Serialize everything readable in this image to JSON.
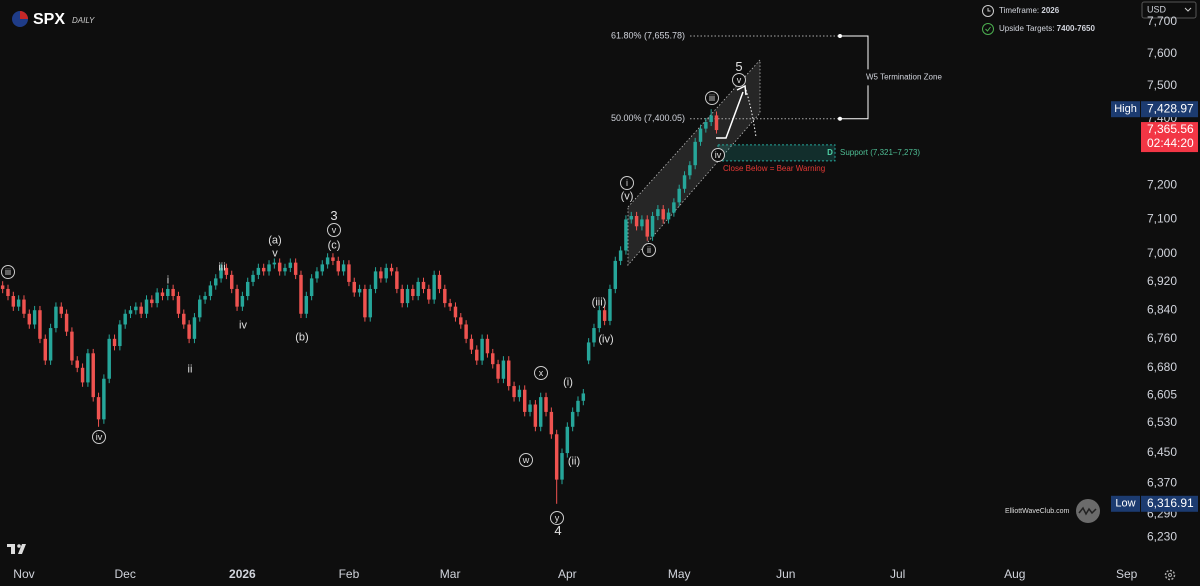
{
  "header": {
    "symbol": "SPX",
    "interval": "DAILY",
    "currency": "USD"
  },
  "info": {
    "timeframe_label": "Timeframe:",
    "timeframe": "2026",
    "targets_label": "Upside Targets:",
    "targets": "7400-7650"
  },
  "watermark": "ElliottWaveClub.com",
  "chart_data": {
    "type": "candlestick",
    "log_scale": true,
    "up_color": "#26a69a",
    "down_color": "#ef5350",
    "ylim": [
      6160,
      7770
    ],
    "yticks": [
      {
        "value": 7700,
        "label": "7,700"
      },
      {
        "value": 7600,
        "label": "7,600"
      },
      {
        "value": 7500,
        "label": "7,500"
      },
      {
        "value": 7400,
        "label": "7,400"
      },
      {
        "value": 7200,
        "label": "7,200"
      },
      {
        "value": 7100,
        "label": "7,100"
      },
      {
        "value": 7000,
        "label": "7,000"
      },
      {
        "value": 6920,
        "label": "6,920"
      },
      {
        "value": 6840,
        "label": "6,840"
      },
      {
        "value": 6760,
        "label": "6,760"
      },
      {
        "value": 6680,
        "label": "6,680"
      },
      {
        "value": 6605,
        "label": "6,605"
      },
      {
        "value": 6530,
        "label": "6,530"
      },
      {
        "value": 6450,
        "label": "6,450"
      },
      {
        "value": 6370,
        "label": "6,370"
      },
      {
        "value": 6290,
        "label": "6,290"
      },
      {
        "value": 6230,
        "label": "6,230"
      }
    ],
    "xlim": [
      -0.5,
      213.5
    ],
    "xticks": [
      {
        "value": 4,
        "label": "Nov"
      },
      {
        "value": 23,
        "label": "Dec"
      },
      {
        "value": 45,
        "label": "2026"
      },
      {
        "value": 65,
        "label": "Feb"
      },
      {
        "value": 84,
        "label": "Mar"
      },
      {
        "value": 106,
        "label": "Apr"
      },
      {
        "value": 127,
        "label": "May"
      },
      {
        "value": 147,
        "label": "Jun"
      },
      {
        "value": 168,
        "label": "Jul"
      },
      {
        "value": 190,
        "label": "Aug"
      },
      {
        "value": 211,
        "label": "Sep"
      }
    ],
    "ohlc": [
      [
        6910,
        6922,
        6888,
        6900
      ],
      [
        6900,
        6912,
        6868,
        6880
      ],
      [
        6880,
        6892,
        6838,
        6850
      ],
      [
        6850,
        6882,
        6838,
        6870
      ],
      [
        6870,
        6882,
        6818,
        6830
      ],
      [
        6830,
        6842,
        6788,
        6800
      ],
      [
        6800,
        6852,
        6788,
        6840
      ],
      [
        6840,
        6852,
        6748,
        6760
      ],
      [
        6760,
        6772,
        6688,
        6700
      ],
      [
        6700,
        6802,
        6688,
        6790
      ],
      [
        6790,
        6862,
        6778,
        6850
      ],
      [
        6850,
        6862,
        6818,
        6830
      ],
      [
        6830,
        6842,
        6768,
        6780
      ],
      [
        6780,
        6792,
        6688,
        6700
      ],
      [
        6700,
        6712,
        6668,
        6680
      ],
      [
        6680,
        6692,
        6628,
        6640
      ],
      [
        6640,
        6732,
        6628,
        6720
      ],
      [
        6720,
        6732,
        6588,
        6600
      ],
      [
        6600,
        6612,
        6520,
        6540
      ],
      [
        6540,
        6662,
        6528,
        6650
      ],
      [
        6650,
        6772,
        6638,
        6760
      ],
      [
        6760,
        6772,
        6728,
        6740
      ],
      [
        6740,
        6812,
        6728,
        6800
      ],
      [
        6800,
        6842,
        6788,
        6830
      ],
      [
        6830,
        6852,
        6818,
        6840
      ],
      [
        6840,
        6862,
        6828,
        6850
      ],
      [
        6850,
        6862,
        6818,
        6830
      ],
      [
        6830,
        6882,
        6818,
        6870
      ],
      [
        6870,
        6882,
        6848,
        6860
      ],
      [
        6860,
        6902,
        6848,
        6890
      ],
      [
        6890,
        6902,
        6868,
        6880
      ],
      [
        6880,
        6912,
        6868,
        6900
      ],
      [
        6900,
        6912,
        6868,
        6880
      ],
      [
        6880,
        6892,
        6818,
        6830
      ],
      [
        6830,
        6842,
        6788,
        6800
      ],
      [
        6800,
        6812,
        6748,
        6760
      ],
      [
        6760,
        6832,
        6748,
        6820
      ],
      [
        6820,
        6882,
        6808,
        6870
      ],
      [
        6870,
        6892,
        6858,
        6880
      ],
      [
        6880,
        6922,
        6868,
        6910
      ],
      [
        6910,
        6942,
        6898,
        6930
      ],
      [
        6930,
        6972,
        6918,
        6960
      ],
      [
        6960,
        6972,
        6928,
        6940
      ],
      [
        6940,
        6952,
        6888,
        6900
      ],
      [
        6900,
        6912,
        6838,
        6850
      ],
      [
        6850,
        6892,
        6838,
        6880
      ],
      [
        6880,
        6932,
        6868,
        6920
      ],
      [
        6920,
        6952,
        6908,
        6940
      ],
      [
        6940,
        6972,
        6928,
        6960
      ],
      [
        6960,
        6972,
        6938,
        6950
      ],
      [
        6950,
        6982,
        6938,
        6970
      ],
      [
        6970,
        6987,
        6958,
        6975
      ],
      [
        6975,
        6987,
        6938,
        6950
      ],
      [
        6950,
        6972,
        6938,
        6960
      ],
      [
        6960,
        6987,
        6948,
        6975
      ],
      [
        6975,
        6987,
        6928,
        6940
      ],
      [
        6940,
        6952,
        6818,
        6830
      ],
      [
        6830,
        6892,
        6818,
        6880
      ],
      [
        6880,
        6942,
        6868,
        6930
      ],
      [
        6930,
        6962,
        6918,
        6950
      ],
      [
        6950,
        6982,
        6938,
        6970
      ],
      [
        6970,
        7002,
        6958,
        6990
      ],
      [
        6990,
        7002,
        6968,
        6980
      ],
      [
        6980,
        6992,
        6938,
        6950
      ],
      [
        6950,
        6982,
        6938,
        6970
      ],
      [
        6970,
        6982,
        6908,
        6920
      ],
      [
        6920,
        6932,
        6878,
        6890
      ],
      [
        6890,
        6912,
        6878,
        6900
      ],
      [
        6900,
        6912,
        6808,
        6820
      ],
      [
        6820,
        6912,
        6808,
        6900
      ],
      [
        6900,
        6962,
        6888,
        6950
      ],
      [
        6950,
        6962,
        6918,
        6930
      ],
      [
        6930,
        6972,
        6918,
        6960
      ],
      [
        6960,
        6972,
        6938,
        6950
      ],
      [
        6950,
        6962,
        6888,
        6900
      ],
      [
        6900,
        6912,
        6848,
        6860
      ],
      [
        6860,
        6912,
        6848,
        6900
      ],
      [
        6900,
        6912,
        6868,
        6880
      ],
      [
        6880,
        6932,
        6868,
        6920
      ],
      [
        6920,
        6932,
        6888,
        6900
      ],
      [
        6900,
        6912,
        6858,
        6870
      ],
      [
        6870,
        6952,
        6858,
        6940
      ],
      [
        6940,
        6952,
        6888,
        6900
      ],
      [
        6900,
        6912,
        6848,
        6860
      ],
      [
        6860,
        6872,
        6838,
        6850
      ],
      [
        6850,
        6862,
        6808,
        6820
      ],
      [
        6820,
        6832,
        6788,
        6800
      ],
      [
        6800,
        6812,
        6748,
        6760
      ],
      [
        6760,
        6772,
        6718,
        6730
      ],
      [
        6730,
        6742,
        6688,
        6700
      ],
      [
        6700,
        6772,
        6688,
        6760
      ],
      [
        6760,
        6772,
        6708,
        6720
      ],
      [
        6720,
        6732,
        6678,
        6690
      ],
      [
        6690,
        6702,
        6638,
        6650
      ],
      [
        6650,
        6712,
        6638,
        6700
      ],
      [
        6700,
        6712,
        6618,
        6630
      ],
      [
        6630,
        6642,
        6588,
        6600
      ],
      [
        6600,
        6632,
        6588,
        6620
      ],
      [
        6620,
        6632,
        6548,
        6560
      ],
      [
        6560,
        6592,
        6548,
        6580
      ],
      [
        6580,
        6592,
        6508,
        6520
      ],
      [
        6520,
        6612,
        6508,
        6600
      ],
      [
        6600,
        6612,
        6548,
        6560
      ],
      [
        6560,
        6572,
        6488,
        6500
      ],
      [
        6500,
        6512,
        6316.91,
        6380
      ],
      [
        6380,
        6462,
        6368,
        6450
      ],
      [
        6450,
        6532,
        6438,
        6520
      ],
      [
        6520,
        6572,
        6508,
        6560
      ],
      [
        6560,
        6602,
        6548,
        6590
      ],
      [
        6590,
        6622,
        6578,
        6610
      ],
      [
        6700,
        6762,
        6690,
        6750
      ],
      [
        6750,
        6802,
        6738,
        6790
      ],
      [
        6790,
        6852,
        6778,
        6840
      ],
      [
        6840,
        6852,
        6798,
        6810
      ],
      [
        6810,
        6912,
        6798,
        6900
      ],
      [
        6900,
        6992,
        6888,
        6980
      ],
      [
        6980,
        7022,
        6968,
        7010
      ],
      [
        7010,
        7112,
        6998,
        7100
      ],
      [
        7100,
        7122,
        7088,
        7110
      ],
      [
        7110,
        7122,
        7068,
        7080
      ],
      [
        7080,
        7112,
        7068,
        7100
      ],
      [
        7100,
        7112,
        7038,
        7050
      ],
      [
        7050,
        7122,
        7038,
        7110
      ],
      [
        7110,
        7142,
        7098,
        7130
      ],
      [
        7130,
        7142,
        7088,
        7100
      ],
      [
        7100,
        7132,
        7088,
        7120
      ],
      [
        7120,
        7162,
        7108,
        7150
      ],
      [
        7150,
        7202,
        7138,
        7190
      ],
      [
        7190,
        7242,
        7178,
        7230
      ],
      [
        7230,
        7272,
        7218,
        7260
      ],
      [
        7260,
        7342,
        7248,
        7330
      ],
      [
        7330,
        7382,
        7318,
        7370
      ],
      [
        7370,
        7402,
        7358,
        7390
      ],
      [
        7390,
        7428.97,
        7378,
        7410
      ],
      [
        7410,
        7422,
        7355,
        7365.56
      ]
    ],
    "price_tags": [
      {
        "name": "High",
        "value": 7428.97,
        "label": "7,428.97"
      },
      {
        "name": "Low",
        "value": 6316.91,
        "label": "6,316.91"
      }
    ],
    "last_price": {
      "value": 7365.56,
      "label": "7,365.56",
      "countdown": "02:44:20"
    },
    "fib_levels": [
      {
        "label": "61.80% (7,655.78)",
        "value": 7655.78
      },
      {
        "label": "50.00% (7,400.05)",
        "value": 7400.05
      }
    ],
    "termination_zone": "W5 Termination Zone",
    "support_zone": {
      "label": "Support (7,321–7,273)",
      "high": 7321,
      "low": 7273,
      "tag": "D",
      "warning": "Close Below = Bear Warning"
    },
    "wave_labels": [
      {
        "text": "iii",
        "circled": true
      },
      {
        "text": "iv",
        "circled": true
      },
      {
        "text": "i",
        "circled": false
      },
      {
        "text": "ii",
        "circled": false
      },
      {
        "text": "iii",
        "circled": false
      },
      {
        "text": "iv",
        "circled": false
      },
      {
        "text": "(a)",
        "circled": false
      },
      {
        "text": "v",
        "circled": false
      },
      {
        "text": "(b)",
        "circled": false
      },
      {
        "text": "3",
        "circled": false
      },
      {
        "text": "v",
        "circled": true
      },
      {
        "text": "(c)",
        "circled": false
      },
      {
        "text": "x",
        "circled": true
      },
      {
        "text": "w",
        "circled": true
      },
      {
        "text": "(i)",
        "circled": false
      },
      {
        "text": "(ii)",
        "circled": false
      },
      {
        "text": "y",
        "circled": true
      },
      {
        "text": "4",
        "circled": false
      },
      {
        "text": "(iii)",
        "circled": false
      },
      {
        "text": "(iv)",
        "circled": false
      },
      {
        "text": "i",
        "circled": true
      },
      {
        "text": "(v)",
        "circled": false
      },
      {
        "text": "ii",
        "circled": true
      },
      {
        "text": "iii",
        "circled": true
      },
      {
        "text": "iv",
        "circled": true
      },
      {
        "text": "5",
        "circled": false
      },
      {
        "text": "v",
        "circled": true
      }
    ]
  }
}
